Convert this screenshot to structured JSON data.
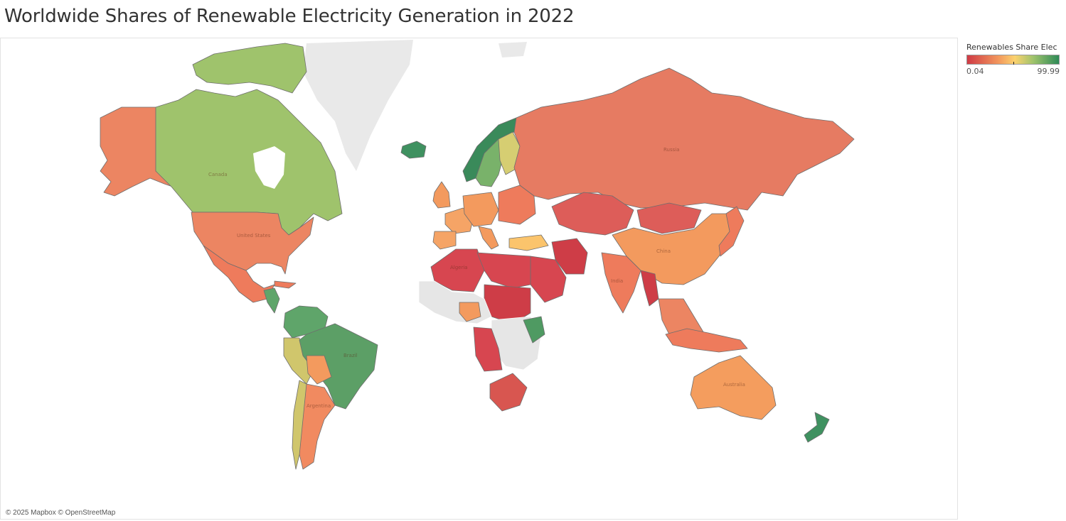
{
  "title": "Worldwide Shares of Renewable Electricity Generation in 2022",
  "attribution": "© 2025 Mapbox © OpenStreetMap",
  "legend": {
    "title": "Renewables Share Elec",
    "min": "0.04",
    "max": "99.99",
    "colors": [
      "#cf3a45",
      "#f39a5e",
      "#fbd26f",
      "#9fc36c",
      "#2e8a57"
    ]
  },
  "map_labels": {
    "canada": "Canada",
    "united_states": "United States",
    "brazil": "Brazil",
    "argentina": "Argentina",
    "russia": "Russia",
    "china": "China",
    "india": "India",
    "australia": "Australia",
    "algeria": "Algeria"
  },
  "colors": {
    "greenland_nodata": "#e9e9e9",
    "nodata": "#e6e6e6"
  }
}
